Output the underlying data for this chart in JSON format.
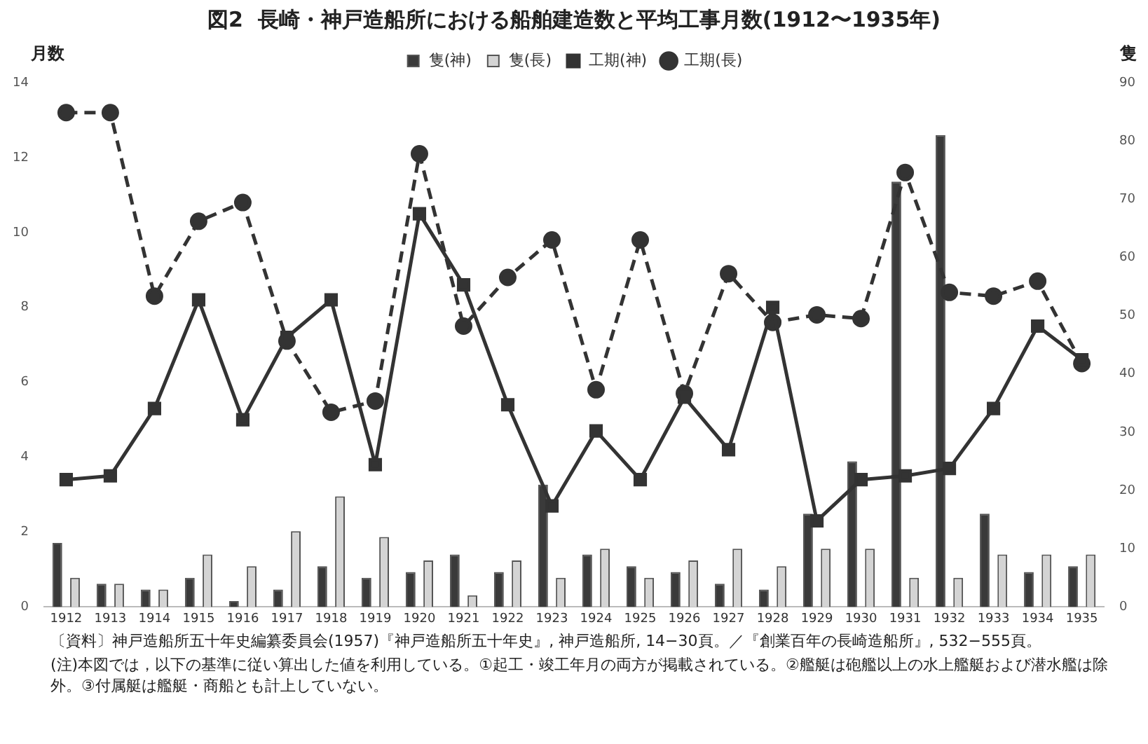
{
  "chart_data": {
    "type": "bar",
    "title": "図2  長崎・神戸造船所における船舶建造数と平均工事月数(1912〜1935年)",
    "ylabel": "月数",
    "y2label": "隻",
    "categories": [
      "1912",
      "1913",
      "1914",
      "1915",
      "1916",
      "1917",
      "1918",
      "1919",
      "1920",
      "1921",
      "1922",
      "1923",
      "1924",
      "1925",
      "1926",
      "1927",
      "1928",
      "1929",
      "1930",
      "1931",
      "1932",
      "1933",
      "1934",
      "1935"
    ],
    "series": [
      {
        "name": "隻(神)",
        "axis": "y2",
        "color": "#3a3a3a",
        "values": [
          11,
          4,
          3,
          5,
          1,
          3,
          7,
          5,
          6,
          9,
          6,
          21,
          9,
          7,
          6,
          4,
          3,
          16,
          25,
          73,
          81,
          16,
          6,
          7
        ]
      },
      {
        "name": "隻(長)",
        "axis": "y2",
        "color": "#d4d4d4",
        "values": [
          5,
          4,
          3,
          9,
          7,
          13,
          19,
          12,
          8,
          2,
          8,
          5,
          10,
          5,
          8,
          10,
          7,
          10,
          10,
          5,
          5,
          9,
          9,
          9
        ]
      },
      {
        "name": "工期(神)",
        "type": "line",
        "axis": "y",
        "color": "#333333",
        "line_style": "solid",
        "marker": "square",
        "values": [
          3.4,
          3.5,
          5.3,
          8.2,
          5.0,
          7.2,
          8.2,
          3.8,
          10.5,
          8.6,
          5.4,
          2.7,
          4.7,
          3.4,
          5.6,
          4.2,
          8.0,
          2.3,
          3.4,
          3.5,
          3.7,
          5.3,
          7.5,
          6.6
        ]
      },
      {
        "name": "工期(長)",
        "type": "line",
        "axis": "y",
        "color": "#333333",
        "line_style": "dashed",
        "marker": "circle",
        "values": [
          13.2,
          13.2,
          8.3,
          10.3,
          10.8,
          7.1,
          5.2,
          5.5,
          12.1,
          7.5,
          8.8,
          9.8,
          5.8,
          9.8,
          5.7,
          8.9,
          7.6,
          7.8,
          7.7,
          11.6,
          8.4,
          8.3,
          8.7,
          6.5
        ]
      }
    ],
    "ylim": [
      0,
      14
    ],
    "yticks": [
      0,
      2,
      4,
      6,
      8,
      10,
      12,
      14
    ],
    "y2lim": [
      0,
      90
    ],
    "y2ticks": [
      0,
      10,
      20,
      30,
      40,
      50,
      60,
      70,
      80,
      90
    ],
    "grid": false,
    "legend": "top",
    "annotations": [
      "〔資料〕神戸造船所五十年史編纂委員会(1957)『神戸造船所五十年史』, 神戸造船所, 14−30頁。／『創業百年の長崎造船所』, 532−555頁。",
      "(注)本図では，以下の基準に従い算出した値を利用している。①起工・竣工年月の両方が掲載されている。②艦艇は砲艦以上の水上艦艇および潜水艦は除外。③付属艇は艦艇・商船とも計上していない。"
    ]
  }
}
